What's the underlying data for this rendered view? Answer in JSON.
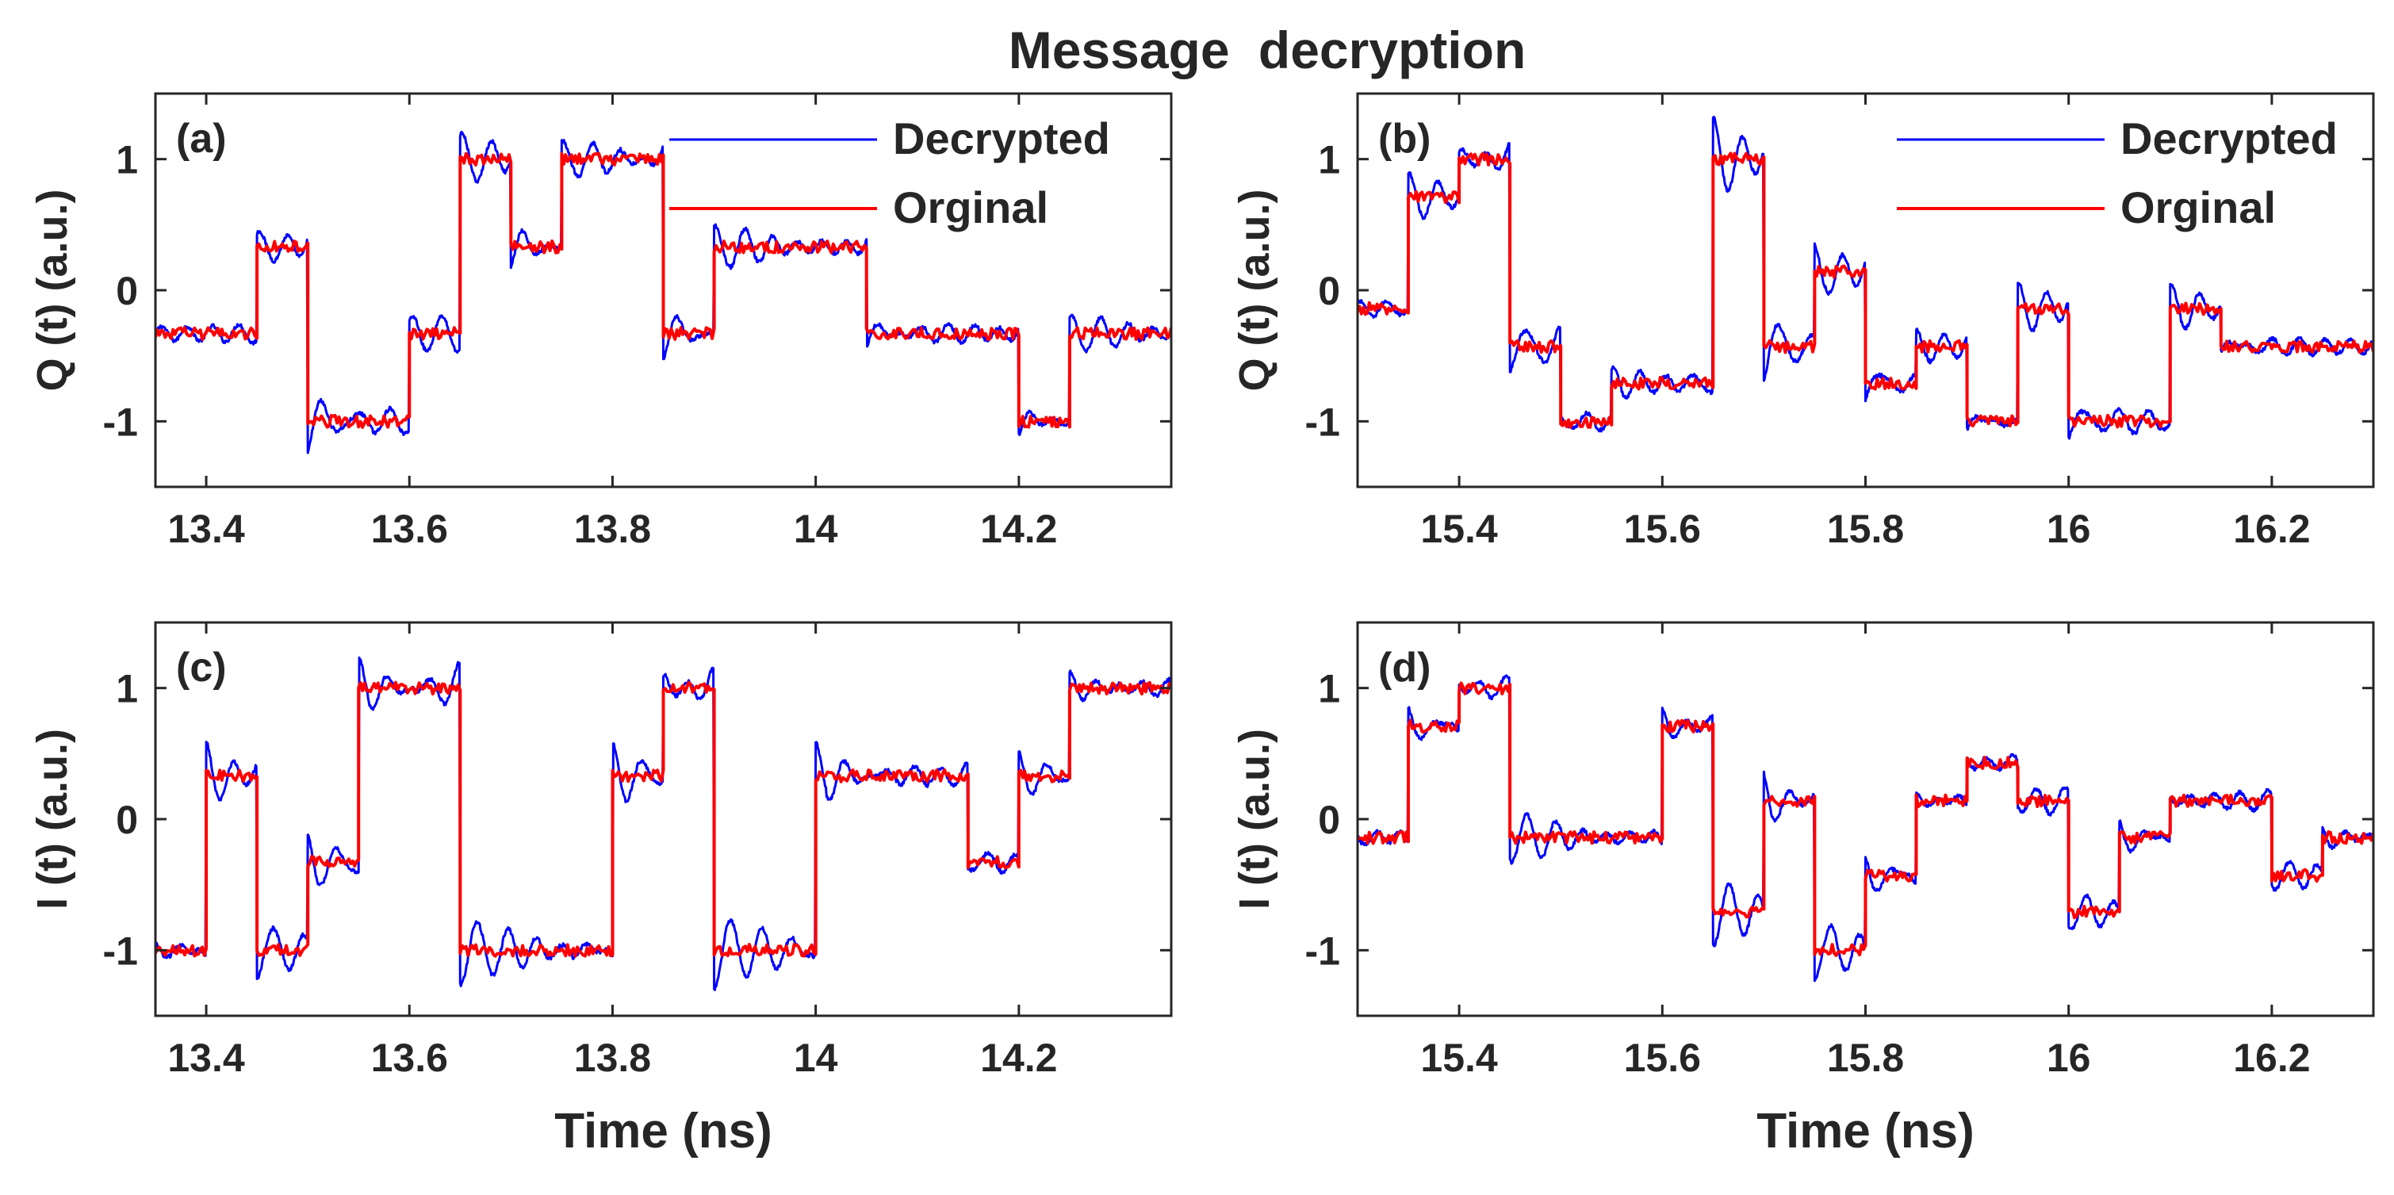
{
  "figure": {
    "title": "Message decryption",
    "colors": {
      "decrypted": "#0000ff",
      "original": "#ff0000",
      "axis": "#262626",
      "text": "#262626"
    }
  },
  "chart_data": [
    {
      "type": "line",
      "panel_label": "(a)",
      "ylabel": "Q (t) (a.u.)",
      "xlabel": "",
      "xlim": [
        13.35,
        14.35
      ],
      "ylim": [
        -1.5,
        1.5
      ],
      "xticks": [
        13.4,
        13.6,
        13.8,
        14.0,
        14.2
      ],
      "xtick_labels": [
        "13.4",
        "13.6",
        "13.8",
        "14",
        "14.2"
      ],
      "yticks": [
        1,
        0,
        -1
      ],
      "ytick_labels": [
        "1",
        "0",
        "-1"
      ],
      "grid": false,
      "legend_position": "top-right",
      "symbol_period_ns": 0.05,
      "series": [
        {
          "name": "Decrypted",
          "color": "#0000ff",
          "style": "smooth with ringing"
        },
        {
          "name": "Orginal",
          "color": "#ff0000",
          "style": "stepped, noisy"
        }
      ],
      "symbols": [
        {
          "t_start": 13.35,
          "t_end": 13.45,
          "value": -0.33
        },
        {
          "t_start": 13.45,
          "t_end": 13.5,
          "value": 0.33
        },
        {
          "t_start": 13.5,
          "t_end": 13.6,
          "value": -1.0
        },
        {
          "t_start": 13.6,
          "t_end": 13.65,
          "value": -0.33
        },
        {
          "t_start": 13.65,
          "t_end": 13.7,
          "value": 1.0
        },
        {
          "t_start": 13.7,
          "t_end": 13.75,
          "value": 0.33
        },
        {
          "t_start": 13.75,
          "t_end": 13.85,
          "value": 1.0
        },
        {
          "t_start": 13.85,
          "t_end": 13.9,
          "value": -0.33
        },
        {
          "t_start": 13.9,
          "t_end": 14.05,
          "value": 0.33
        },
        {
          "t_start": 14.05,
          "t_end": 14.2,
          "value": -0.33
        },
        {
          "t_start": 14.2,
          "t_end": 14.25,
          "value": -1.0
        },
        {
          "t_start": 14.25,
          "t_end": 14.35,
          "value": -0.33
        }
      ]
    },
    {
      "type": "line",
      "panel_label": "(b)",
      "ylabel": "Q (t) (a.u.)",
      "xlabel": "",
      "xlim": [
        15.3,
        16.3
      ],
      "ylim": [
        -1.5,
        1.5
      ],
      "xticks": [
        15.4,
        15.6,
        15.8,
        16.0,
        16.2
      ],
      "xtick_labels": [
        "15.4",
        "15.6",
        "15.8",
        "16",
        "16.2"
      ],
      "yticks": [
        1,
        0,
        -1
      ],
      "ytick_labels": [
        "1",
        "0",
        "-1"
      ],
      "grid": false,
      "legend_position": "top-right",
      "symbol_period_ns": 0.05,
      "series": [
        {
          "name": "Decrypted",
          "color": "#0000ff",
          "style": "smooth with ringing"
        },
        {
          "name": "Orginal",
          "color": "#ff0000",
          "style": "stepped, noisy"
        }
      ],
      "symbols": [
        {
          "t_start": 15.3,
          "t_end": 15.35,
          "value": -0.14
        },
        {
          "t_start": 15.35,
          "t_end": 15.4,
          "value": 0.71
        },
        {
          "t_start": 15.4,
          "t_end": 15.45,
          "value": 1.0
        },
        {
          "t_start": 15.45,
          "t_end": 15.5,
          "value": -0.43
        },
        {
          "t_start": 15.5,
          "t_end": 15.55,
          "value": -1.0
        },
        {
          "t_start": 15.55,
          "t_end": 15.65,
          "value": -0.71
        },
        {
          "t_start": 15.65,
          "t_end": 15.7,
          "value": 1.0
        },
        {
          "t_start": 15.7,
          "t_end": 15.75,
          "value": -0.43
        },
        {
          "t_start": 15.75,
          "t_end": 15.8,
          "value": 0.14
        },
        {
          "t_start": 15.8,
          "t_end": 15.85,
          "value": -0.71
        },
        {
          "t_start": 15.85,
          "t_end": 15.9,
          "value": -0.43
        },
        {
          "t_start": 15.9,
          "t_end": 15.95,
          "value": -1.0
        },
        {
          "t_start": 15.95,
          "t_end": 16.0,
          "value": -0.14
        },
        {
          "t_start": 16.0,
          "t_end": 16.1,
          "value": -1.0
        },
        {
          "t_start": 16.1,
          "t_end": 16.15,
          "value": -0.14
        },
        {
          "t_start": 16.15,
          "t_end": 16.3,
          "value": -0.43
        }
      ]
    },
    {
      "type": "line",
      "panel_label": "(c)",
      "ylabel": "I (t) (a.u.)",
      "xlabel": "Time (ns)",
      "xlim": [
        13.35,
        14.35
      ],
      "ylim": [
        -1.5,
        1.5
      ],
      "xticks": [
        13.4,
        13.6,
        13.8,
        14.0,
        14.2
      ],
      "xtick_labels": [
        "13.4",
        "13.6",
        "13.8",
        "14",
        "14.2"
      ],
      "yticks": [
        1,
        0,
        -1
      ],
      "ytick_labels": [
        "1",
        "0",
        "-1"
      ],
      "grid": false,
      "symbol_period_ns": 0.05,
      "series": [
        {
          "name": "Decrypted",
          "color": "#0000ff",
          "style": "smooth with ringing"
        },
        {
          "name": "Orginal",
          "color": "#ff0000",
          "style": "stepped, noisy"
        }
      ],
      "symbols": [
        {
          "t_start": 13.35,
          "t_end": 13.4,
          "value": -1.0
        },
        {
          "t_start": 13.4,
          "t_end": 13.45,
          "value": 0.33
        },
        {
          "t_start": 13.45,
          "t_end": 13.5,
          "value": -1.0
        },
        {
          "t_start": 13.5,
          "t_end": 13.55,
          "value": -0.33
        },
        {
          "t_start": 13.55,
          "t_end": 13.65,
          "value": 1.0
        },
        {
          "t_start": 13.65,
          "t_end": 13.8,
          "value": -1.0
        },
        {
          "t_start": 13.8,
          "t_end": 13.85,
          "value": 0.33
        },
        {
          "t_start": 13.85,
          "t_end": 13.9,
          "value": 1.0
        },
        {
          "t_start": 13.9,
          "t_end": 14.0,
          "value": -1.0
        },
        {
          "t_start": 14.0,
          "t_end": 14.15,
          "value": 0.33
        },
        {
          "t_start": 14.15,
          "t_end": 14.2,
          "value": -0.33
        },
        {
          "t_start": 14.2,
          "t_end": 14.25,
          "value": 0.33
        },
        {
          "t_start": 14.25,
          "t_end": 14.35,
          "value": 1.0
        }
      ]
    },
    {
      "type": "line",
      "panel_label": "(d)",
      "ylabel": "I (t) (a.u.)",
      "xlabel": "Time (ns)",
      "xlim": [
        15.3,
        16.3
      ],
      "ylim": [
        -1.5,
        1.5
      ],
      "xticks": [
        15.4,
        15.6,
        15.8,
        16.0,
        16.2
      ],
      "xtick_labels": [
        "15.4",
        "15.6",
        "15.8",
        "16",
        "16.2"
      ],
      "yticks": [
        1,
        0,
        -1
      ],
      "ytick_labels": [
        "1",
        "0",
        "-1"
      ],
      "grid": false,
      "symbol_period_ns": 0.05,
      "series": [
        {
          "name": "Decrypted",
          "color": "#0000ff",
          "style": "smooth with ringing"
        },
        {
          "name": "Orginal",
          "color": "#ff0000",
          "style": "stepped, noisy"
        }
      ],
      "symbols": [
        {
          "t_start": 15.3,
          "t_end": 15.35,
          "value": -0.14
        },
        {
          "t_start": 15.35,
          "t_end": 15.4,
          "value": 0.71
        },
        {
          "t_start": 15.4,
          "t_end": 15.45,
          "value": 1.0
        },
        {
          "t_start": 15.45,
          "t_end": 15.6,
          "value": -0.14
        },
        {
          "t_start": 15.6,
          "t_end": 15.65,
          "value": 0.71
        },
        {
          "t_start": 15.65,
          "t_end": 15.7,
          "value": -0.71
        },
        {
          "t_start": 15.7,
          "t_end": 15.75,
          "value": 0.14
        },
        {
          "t_start": 15.75,
          "t_end": 15.8,
          "value": -1.0
        },
        {
          "t_start": 15.8,
          "t_end": 15.85,
          "value": -0.43
        },
        {
          "t_start": 15.85,
          "t_end": 15.9,
          "value": 0.14
        },
        {
          "t_start": 15.9,
          "t_end": 15.95,
          "value": 0.43
        },
        {
          "t_start": 15.95,
          "t_end": 16.0,
          "value": 0.14
        },
        {
          "t_start": 16.0,
          "t_end": 16.05,
          "value": -0.71
        },
        {
          "t_start": 16.05,
          "t_end": 16.1,
          "value": -0.14
        },
        {
          "t_start": 16.1,
          "t_end": 16.2,
          "value": 0.14
        },
        {
          "t_start": 16.2,
          "t_end": 16.25,
          "value": -0.43
        },
        {
          "t_start": 16.25,
          "t_end": 16.3,
          "value": -0.14
        }
      ]
    }
  ]
}
